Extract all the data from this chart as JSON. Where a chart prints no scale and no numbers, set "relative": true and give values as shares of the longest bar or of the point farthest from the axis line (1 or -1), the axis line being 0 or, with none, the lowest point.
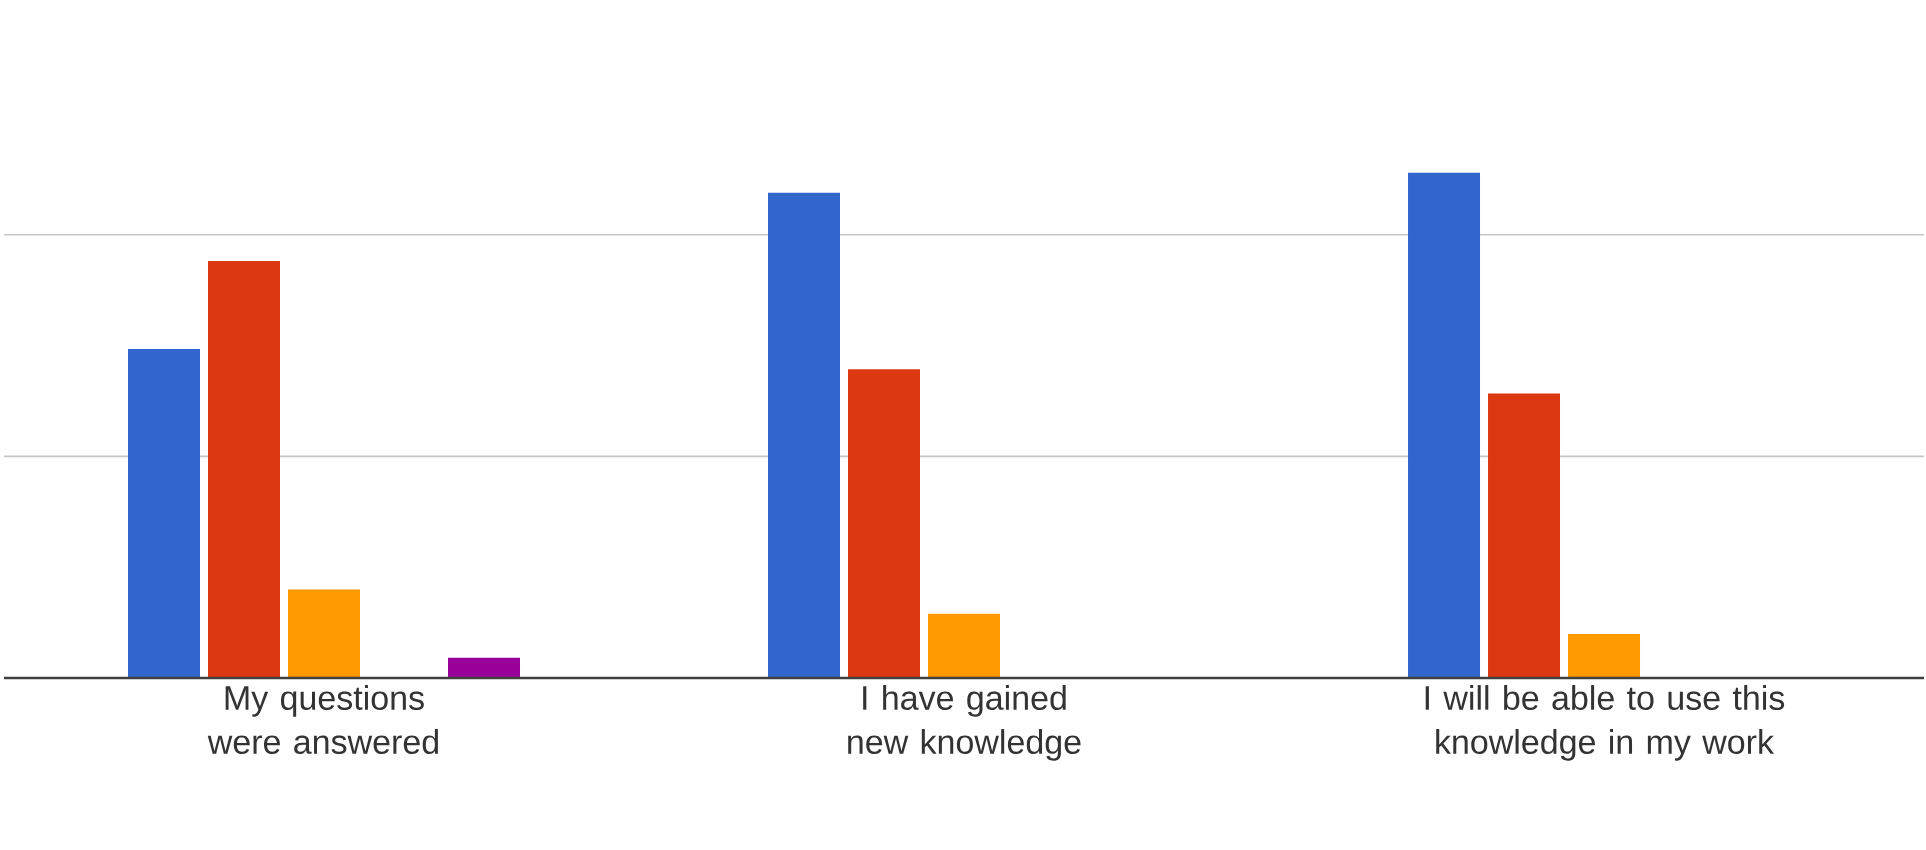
{
  "chart_data": {
    "type": "bar",
    "relative": true,
    "categories": [
      "My questions were answered",
      "I have gained new knowledge",
      "I will be able to use this knowledge in my work"
    ],
    "series": [
      {
        "color": "#3366cc",
        "values": [
          0.651,
          0.96,
          1.0
        ]
      },
      {
        "color": "#dc3912",
        "values": [
          0.825,
          0.611,
          0.563
        ]
      },
      {
        "color": "#ff9900",
        "values": [
          0.175,
          0.127,
          0.087
        ]
      },
      {
        "color": "#109618",
        "values": [
          0,
          0,
          0
        ]
      },
      {
        "color": "#990099",
        "values": [
          0.04,
          0,
          0
        ]
      }
    ],
    "ref_lines": [
      {
        "axis": "y",
        "value": 0.4385,
        "color": "#c6c6c6"
      },
      {
        "axis": "y",
        "value": 0.877,
        "color": "#c6c6c6"
      }
    ]
  }
}
